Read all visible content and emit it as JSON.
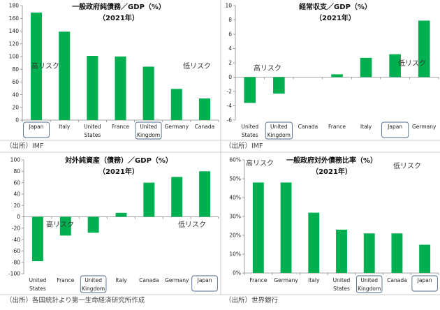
{
  "colors": {
    "bar": "#00B050",
    "highlight_box": "#4F6B8A",
    "axis": "#888888"
  },
  "chart_data": [
    {
      "type": "bar",
      "title": "一般政府純債務／GDP（%）",
      "subtitle": "（2021年）",
      "categories": [
        "Japan",
        "Italy",
        "United States",
        "France",
        "United Kingdom",
        "Germany",
        "Canada"
      ],
      "values": [
        169,
        139,
        101,
        100,
        84,
        49,
        34
      ],
      "ylim": [
        0,
        180
      ],
      "yticks": [
        0,
        20,
        40,
        60,
        80,
        100,
        120,
        140,
        160,
        180
      ],
      "ytick_suffix": "",
      "highlighted": [
        "Japan",
        "United Kingdom"
      ],
      "annotations": {
        "high_risk": "高リスク",
        "low_risk": "低リスク"
      },
      "source": "（出所）IMF",
      "grid": false
    },
    {
      "type": "bar",
      "title": "経常収支／GDP（%）",
      "subtitle": "（2021年）",
      "categories": [
        "United States",
        "United Kingdom",
        "Canada",
        "France",
        "Italy",
        "Japan",
        "Germany"
      ],
      "values": [
        -3.6,
        -2.3,
        0,
        0.4,
        2.7,
        3.2,
        7.9
      ],
      "ylim": [
        -6,
        10
      ],
      "yticks": [
        -6,
        -4,
        -2,
        0,
        2,
        4,
        6,
        8,
        10
      ],
      "ytick_suffix": "",
      "highlighted": [
        "United Kingdom",
        "Japan"
      ],
      "annotations": {
        "high_risk": "高リスク",
        "low_risk": "低リスク"
      },
      "source": "（出所）IMF",
      "grid": false
    },
    {
      "type": "bar",
      "title": "対外純資産（債務）／GDP（%）",
      "subtitle": "（2021年）",
      "categories": [
        "United States",
        "France",
        "United Kingdom",
        "Italy",
        "Canada",
        "Germany",
        "Japan"
      ],
      "values": [
        -78,
        -33,
        -28,
        7,
        60,
        70,
        80
      ],
      "ylim": [
        -100,
        100
      ],
      "yticks": [
        -100,
        -80,
        -60,
        -40,
        -20,
        0,
        20,
        40,
        60,
        80,
        100
      ],
      "ytick_suffix": "",
      "highlighted": [
        "United Kingdom",
        "Japan"
      ],
      "annotations": {
        "high_risk": "高リスク",
        "low_risk": "低リスク"
      },
      "source": "（出所）各国統計より第一生命経済研究所作成",
      "grid": false
    },
    {
      "type": "bar",
      "title": "一般政府対外債務比率（%）",
      "subtitle": "（2021年）",
      "categories": [
        "France",
        "Germany",
        "Italy",
        "United States",
        "United Kingdom",
        "Canada",
        "Japan"
      ],
      "values": [
        48,
        48,
        32,
        23,
        21,
        21,
        15
      ],
      "ylim": [
        0,
        60
      ],
      "yticks": [
        0,
        10,
        20,
        30,
        40,
        50,
        60
      ],
      "ytick_suffix": "%",
      "highlighted": [
        "United Kingdom",
        "Japan"
      ],
      "annotations": {
        "high_risk": "高リスク",
        "low_risk": "低リスク"
      },
      "source": "（出所）世界銀行",
      "grid": false
    }
  ]
}
